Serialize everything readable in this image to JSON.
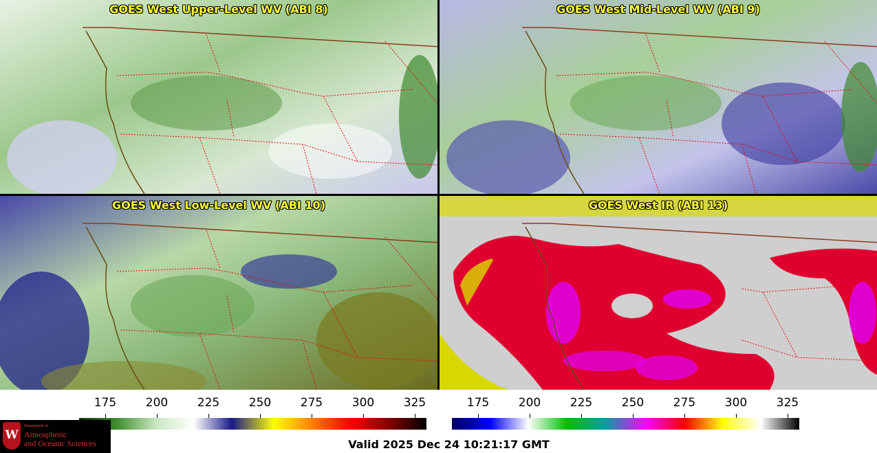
{
  "panels": [
    {
      "title": "GOES West Upper-Level WV (ABI 8)"
    },
    {
      "title": "GOES West Mid-Level WV (ABI 9)"
    },
    {
      "title": "GOES West Low-Level WV (ABI 10)"
    },
    {
      "title": "GOES West IR (ABI 13)"
    }
  ],
  "colorbar_wv": {
    "ticks": [
      "175",
      "200",
      "225",
      "250",
      "275",
      "300",
      "325"
    ],
    "colors": [
      "#0f2a0f",
      "#3f8f2f",
      "#c9e6c0",
      "#ffffff",
      "#1a1a8a",
      "#ffff00",
      "#ff8000",
      "#ff0000",
      "#8a0000",
      "#000000"
    ]
  },
  "colorbar_ir": {
    "ticks": [
      "175",
      "200",
      "225",
      "250",
      "275",
      "300",
      "325"
    ],
    "colors": [
      "#000060",
      "#0000ff",
      "#ffffff",
      "#00c000",
      "#00a0a0",
      "#ff00ff",
      "#ff0000",
      "#ffff00",
      "#ffffff",
      "#000000"
    ]
  },
  "logo": {
    "line1": "Department of",
    "line2": "Atmospheric",
    "line3": "and Oceanic Sciences",
    "seal": "W"
  },
  "valid_time": "Valid 2025 Dec 24 10:21:17 GMT"
}
